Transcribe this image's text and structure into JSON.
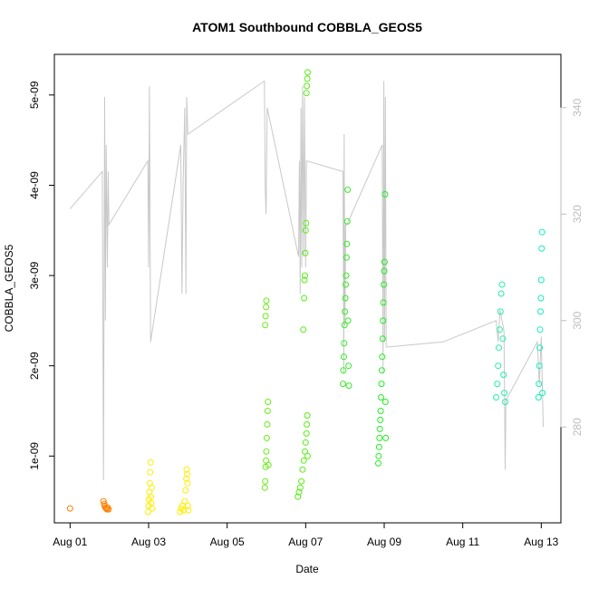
{
  "chart_data": {
    "type": "scatter",
    "title": "ATOM1 Southbound COBBLA_GEOS5",
    "xlabel": "Date",
    "ylabel": "COBBLA_GEOS5",
    "x_units": "days since Aug 01",
    "xlim": [
      -0.4,
      12.5
    ],
    "ylim": [
      2.6e-10,
      5.45e-09
    ],
    "x_ticks": [
      {
        "value": 0,
        "label": "Aug 01"
      },
      {
        "value": 2,
        "label": "Aug 03"
      },
      {
        "value": 4,
        "label": "Aug 05"
      },
      {
        "value": 6,
        "label": "Aug 07"
      },
      {
        "value": 8,
        "label": "Aug 09"
      },
      {
        "value": 10,
        "label": "Aug 11"
      },
      {
        "value": 12,
        "label": "Aug 13"
      }
    ],
    "y_ticks": [
      {
        "value": 1e-09,
        "label": "1e-09"
      },
      {
        "value": 2e-09,
        "label": "2e-09"
      },
      {
        "value": 3e-09,
        "label": "3e-09"
      },
      {
        "value": 4e-09,
        "label": "4e-09"
      },
      {
        "value": 5e-09,
        "label": "5e-09"
      }
    ],
    "y2_ticks": [
      {
        "value": 280,
        "label": "280"
      },
      {
        "value": 300,
        "label": "300"
      },
      {
        "value": 320,
        "label": "320"
      },
      {
        "value": 340,
        "label": "340"
      }
    ],
    "y2lim": [
      262,
      350
    ],
    "colors": {
      "line": "#c8c8c8",
      "right_axis": "#bdbdbd"
    },
    "series": [
      {
        "name": "points",
        "marker": "open-circle",
        "color_by_time": true,
        "points": [
          [
            0.0,
            4.2e-10,
            "#ff8000"
          ],
          [
            0.85,
            5e-10,
            "#ff8000"
          ],
          [
            0.87,
            4.7e-10,
            "#ff8000"
          ],
          [
            0.88,
            4.5e-10,
            "#ff8000"
          ],
          [
            0.9,
            4.3e-10,
            "#ff8000"
          ],
          [
            0.92,
            4.2e-10,
            "#ff8000"
          ],
          [
            0.94,
            4.1e-10,
            "#ff8000"
          ],
          [
            0.96,
            4.3e-10,
            "#ff8000"
          ],
          [
            0.98,
            4.1e-10,
            "#ff8000"
          ],
          [
            1.99,
            3.8e-10,
            "#ffee00"
          ],
          [
            2.0,
            4.5e-10,
            "#ffee00"
          ],
          [
            2.01,
            5.2e-10,
            "#ffee00"
          ],
          [
            2.02,
            6e-10,
            "#ffee00"
          ],
          [
            2.03,
            7e-10,
            "#ffee00"
          ],
          [
            2.04,
            8.2e-10,
            "#ffee00"
          ],
          [
            2.05,
            9.3e-10,
            "#ffee00"
          ],
          [
            2.06,
            5.5e-10,
            "#ffee00"
          ],
          [
            2.07,
            4.8e-10,
            "#ffee00"
          ],
          [
            2.08,
            6.5e-10,
            "#ffee00"
          ],
          [
            2.09,
            4.2e-10,
            "#ffee00"
          ],
          [
            2.8,
            3.8e-10,
            "#ffee00"
          ],
          [
            2.83,
            4.2e-10,
            "#ffee00"
          ],
          [
            2.86,
            4.5e-10,
            "#ffee00"
          ],
          [
            2.89,
            4e-10,
            "#ffee00"
          ],
          [
            2.92,
            5e-10,
            "#ffee00"
          ],
          [
            2.94,
            6.2e-10,
            "#ffee00"
          ],
          [
            2.96,
            7.5e-10,
            "#ffee00"
          ],
          [
            2.97,
            8.5e-10,
            "#ffee00"
          ],
          [
            2.98,
            8e-10,
            "#ffee00"
          ],
          [
            2.99,
            7e-10,
            "#ffee00"
          ],
          [
            3.0,
            4.5e-10,
            "#ffee00"
          ],
          [
            3.01,
            4e-10,
            "#ffee00"
          ],
          [
            4.96,
            6.5e-10,
            "#66ee11"
          ],
          [
            4.97,
            7.2e-10,
            "#66ee11"
          ],
          [
            4.98,
            8.8e-10,
            "#66ee11"
          ],
          [
            4.99,
            9.5e-10,
            "#66ee11"
          ],
          [
            5.0,
            1.05e-09,
            "#66ee11"
          ],
          [
            5.01,
            1.2e-09,
            "#66ee11"
          ],
          [
            5.02,
            1.35e-09,
            "#66ee11"
          ],
          [
            5.03,
            1.5e-09,
            "#66ee11"
          ],
          [
            5.04,
            1.6e-09,
            "#66ee11"
          ],
          [
            5.05,
            9e-10,
            "#66ee11"
          ],
          [
            4.97,
            2.45e-09,
            "#66ee11"
          ],
          [
            4.98,
            2.55e-09,
            "#66ee11"
          ],
          [
            4.99,
            2.65e-09,
            "#66ee11"
          ],
          [
            5.0,
            2.72e-09,
            "#66ee11"
          ],
          [
            5.8,
            5.5e-10,
            "#55ee11"
          ],
          [
            5.83,
            6e-10,
            "#55ee11"
          ],
          [
            5.86,
            6.5e-10,
            "#55ee11"
          ],
          [
            5.89,
            7.2e-10,
            "#55ee11"
          ],
          [
            5.92,
            8.5e-10,
            "#55ee11"
          ],
          [
            5.95,
            9.5e-10,
            "#55ee11"
          ],
          [
            5.98,
            1.05e-09,
            "#55ee11"
          ],
          [
            6.0,
            1.15e-09,
            "#55ee11"
          ],
          [
            6.02,
            1.25e-09,
            "#55ee11"
          ],
          [
            6.03,
            1.35e-09,
            "#55ee11"
          ],
          [
            6.04,
            1.45e-09,
            "#55ee11"
          ],
          [
            6.05,
            1e-09,
            "#55ee11"
          ],
          [
            5.94,
            2.4e-09,
            "#55ee11"
          ],
          [
            5.96,
            2.75e-09,
            "#55ee11"
          ],
          [
            5.97,
            2.95e-09,
            "#55ee11"
          ],
          [
            5.98,
            3e-09,
            "#55ee11"
          ],
          [
            5.99,
            3.25e-09,
            "#55ee11"
          ],
          [
            6.0,
            3.5e-09,
            "#55ee11"
          ],
          [
            6.01,
            3.58e-09,
            "#55ee11"
          ],
          [
            6.02,
            5.02e-09,
            "#55ee11"
          ],
          [
            6.03,
            5.1e-09,
            "#55ee11"
          ],
          [
            6.04,
            5.18e-09,
            "#55ee11"
          ],
          [
            6.05,
            5.25e-09,
            "#55ee11"
          ],
          [
            6.95,
            1.8e-09,
            "#33ee22"
          ],
          [
            6.96,
            1.95e-09,
            "#33ee22"
          ],
          [
            6.97,
            2.1e-09,
            "#33ee22"
          ],
          [
            6.98,
            2.25e-09,
            "#33ee22"
          ],
          [
            6.99,
            2.45e-09,
            "#33ee22"
          ],
          [
            7.0,
            2.6e-09,
            "#33ee22"
          ],
          [
            7.01,
            2.75e-09,
            "#33ee22"
          ],
          [
            7.02,
            2.9e-09,
            "#33ee22"
          ],
          [
            7.03,
            3e-09,
            "#33ee22"
          ],
          [
            7.04,
            3.2e-09,
            "#33ee22"
          ],
          [
            7.05,
            3.35e-09,
            "#33ee22"
          ],
          [
            7.06,
            3.6e-09,
            "#33ee22"
          ],
          [
            7.07,
            3.95e-09,
            "#33ee22"
          ],
          [
            7.08,
            2.5e-09,
            "#33ee22"
          ],
          [
            7.09,
            2e-09,
            "#33ee22"
          ],
          [
            7.1,
            1.78e-09,
            "#33ee22"
          ],
          [
            7.85,
            9.2e-10,
            "#22ee22"
          ],
          [
            7.86,
            1e-09,
            "#22ee22"
          ],
          [
            7.87,
            1.1e-09,
            "#22ee22"
          ],
          [
            7.88,
            1.2e-09,
            "#22ee22"
          ],
          [
            7.89,
            1.3e-09,
            "#22ee22"
          ],
          [
            7.9,
            1.4e-09,
            "#22ee22"
          ],
          [
            7.91,
            1.5e-09,
            "#22ee22"
          ],
          [
            7.92,
            1.65e-09,
            "#22ee22"
          ],
          [
            7.93,
            1.8e-09,
            "#22ee22"
          ],
          [
            7.94,
            1.95e-09,
            "#22ee22"
          ],
          [
            7.95,
            2.1e-09,
            "#22ee22"
          ],
          [
            7.96,
            2.3e-09,
            "#22ee22"
          ],
          [
            7.97,
            2.5e-09,
            "#22ee22"
          ],
          [
            7.98,
            2.7e-09,
            "#22ee22"
          ],
          [
            7.99,
            2.9e-09,
            "#22ee22"
          ],
          [
            8.0,
            3.05e-09,
            "#22ee22"
          ],
          [
            8.01,
            3.15e-09,
            "#22ee22"
          ],
          [
            8.02,
            3.9e-09,
            "#22ee22"
          ],
          [
            8.03,
            1.6e-09,
            "#22ee22"
          ],
          [
            8.04,
            1.2e-09,
            "#22ee22"
          ],
          [
            10.85,
            1.65e-09,
            "#22eeaa"
          ],
          [
            10.88,
            1.8e-09,
            "#22eeaa"
          ],
          [
            10.9,
            2e-09,
            "#22eeaa"
          ],
          [
            10.92,
            2.2e-09,
            "#22eeaa"
          ],
          [
            10.94,
            2.4e-09,
            "#22eeaa"
          ],
          [
            10.96,
            2.6e-09,
            "#22eeaa"
          ],
          [
            10.98,
            2.8e-09,
            "#22eeaa"
          ],
          [
            11.0,
            2.9e-09,
            "#22eeaa"
          ],
          [
            11.02,
            2.3e-09,
            "#22eeaa"
          ],
          [
            11.04,
            1.9e-09,
            "#22eeaa"
          ],
          [
            11.06,
            1.7e-09,
            "#22eeaa"
          ],
          [
            11.08,
            1.6e-09,
            "#22eeaa"
          ],
          [
            11.93,
            1.65e-09,
            "#11eebb"
          ],
          [
            11.94,
            1.8e-09,
            "#11eebb"
          ],
          [
            11.95,
            2e-09,
            "#11eebb"
          ],
          [
            11.96,
            2.2e-09,
            "#11eebb"
          ],
          [
            11.97,
            2.4e-09,
            "#11eebb"
          ],
          [
            11.98,
            2.6e-09,
            "#11eebb"
          ],
          [
            11.99,
            2.75e-09,
            "#11eebb"
          ],
          [
            12.0,
            2.95e-09,
            "#11eebb"
          ],
          [
            12.01,
            3.3e-09,
            "#11eebb"
          ],
          [
            12.02,
            3.48e-09,
            "#11eebb"
          ],
          [
            12.03,
            1.7e-09,
            "#11eebb"
          ]
        ]
      },
      {
        "name": "line",
        "axis": "right",
        "color": "#c8c8c8",
        "points": [
          [
            0.0,
            321
          ],
          [
            0.82,
            328
          ],
          [
            0.85,
            270
          ],
          [
            0.88,
            342
          ],
          [
            0.9,
            300
          ],
          [
            0.92,
            333
          ],
          [
            0.95,
            310
          ],
          [
            0.97,
            328
          ],
          [
            0.99,
            318
          ],
          [
            1.98,
            330
          ],
          [
            2.0,
            310
          ],
          [
            2.02,
            344
          ],
          [
            2.05,
            296
          ],
          [
            2.82,
            333
          ],
          [
            2.85,
            305
          ],
          [
            2.88,
            326
          ],
          [
            2.92,
            340
          ],
          [
            2.95,
            305
          ],
          [
            2.97,
            342
          ],
          [
            3.0,
            335
          ],
          [
            4.95,
            345
          ],
          [
            4.97,
            325
          ],
          [
            4.99,
            320
          ],
          [
            5.02,
            340
          ],
          [
            5.82,
            312
          ],
          [
            5.84,
            330
          ],
          [
            5.86,
            305
          ],
          [
            5.88,
            340
          ],
          [
            5.9,
            310
          ],
          [
            5.92,
            344
          ],
          [
            5.95,
            312
          ],
          [
            5.97,
            342
          ],
          [
            6.0,
            310
          ],
          [
            6.02,
            330
          ],
          [
            6.95,
            328
          ],
          [
            6.97,
            290
          ],
          [
            6.98,
            335
          ],
          [
            7.0,
            299
          ],
          [
            7.02,
            318
          ],
          [
            7.05,
            318
          ],
          [
            7.95,
            333
          ],
          [
            7.97,
            290
          ],
          [
            7.99,
            345
          ],
          [
            8.01,
            296
          ],
          [
            8.03,
            342
          ],
          [
            8.05,
            295
          ],
          [
            9.5,
            296
          ],
          [
            10.85,
            300
          ],
          [
            10.9,
            296
          ],
          [
            10.95,
            302
          ],
          [
            11.0,
            300
          ],
          [
            11.05,
            298
          ],
          [
            11.08,
            272
          ],
          [
            11.1,
            285
          ],
          [
            11.9,
            296
          ],
          [
            11.95,
            288
          ],
          [
            12.0,
            297
          ],
          [
            12.05,
            280
          ]
        ]
      }
    ]
  }
}
